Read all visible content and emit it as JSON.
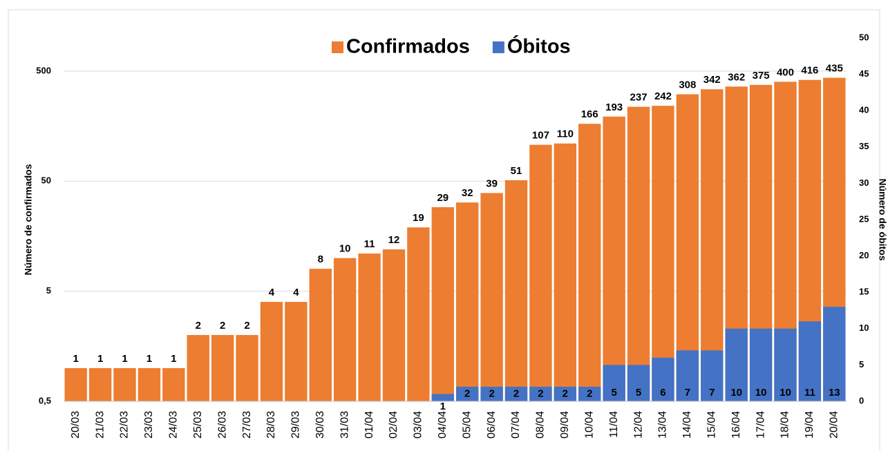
{
  "chart_data": {
    "type": "bar",
    "y_label": "Número de confirmados",
    "y2_label": "Número de óbitos",
    "categories": [
      "20/03",
      "21/03",
      "22/03",
      "23/03",
      "24/03",
      "25/03",
      "26/03",
      "27/03",
      "28/03",
      "29/03",
      "30/03",
      "31/03",
      "01/04",
      "02/04",
      "03/04",
      "04/04",
      "05/04",
      "06/04",
      "07/04",
      "08/04",
      "09/04",
      "10/04",
      "11/04",
      "12/04",
      "13/04",
      "14/04",
      "15/04",
      "16/04",
      "17/04",
      "18/04",
      "19/04",
      "20/04"
    ],
    "series": [
      {
        "name": "Confirmados",
        "color": "#ed7d31",
        "values": [
          1,
          1,
          1,
          1,
          1,
          2,
          2,
          2,
          4,
          4,
          8,
          10,
          11,
          12,
          19,
          29,
          32,
          39,
          51,
          107,
          110,
          166,
          193,
          237,
          242,
          308,
          342,
          362,
          375,
          400,
          416,
          435
        ]
      },
      {
        "name": "Óbitos",
        "color": "#4472c4",
        "axis": "y2",
        "values": [
          null,
          null,
          null,
          null,
          null,
          null,
          null,
          null,
          null,
          null,
          null,
          null,
          null,
          null,
          null,
          1,
          2,
          2,
          2,
          2,
          2,
          2,
          5,
          5,
          6,
          7,
          7,
          10,
          10,
          10,
          11,
          13
        ]
      }
    ],
    "ylim": [
      0.5,
      1000
    ],
    "log_y": true,
    "yticks": [
      {
        "value": 0.5,
        "label": "0,5"
      },
      5,
      50,
      500
    ],
    "y2lim": [
      0,
      50
    ],
    "y2ticks": [
      0,
      5,
      10,
      15,
      20,
      25,
      30,
      35,
      40,
      45,
      50
    ],
    "grid": true,
    "legend": "top"
  }
}
